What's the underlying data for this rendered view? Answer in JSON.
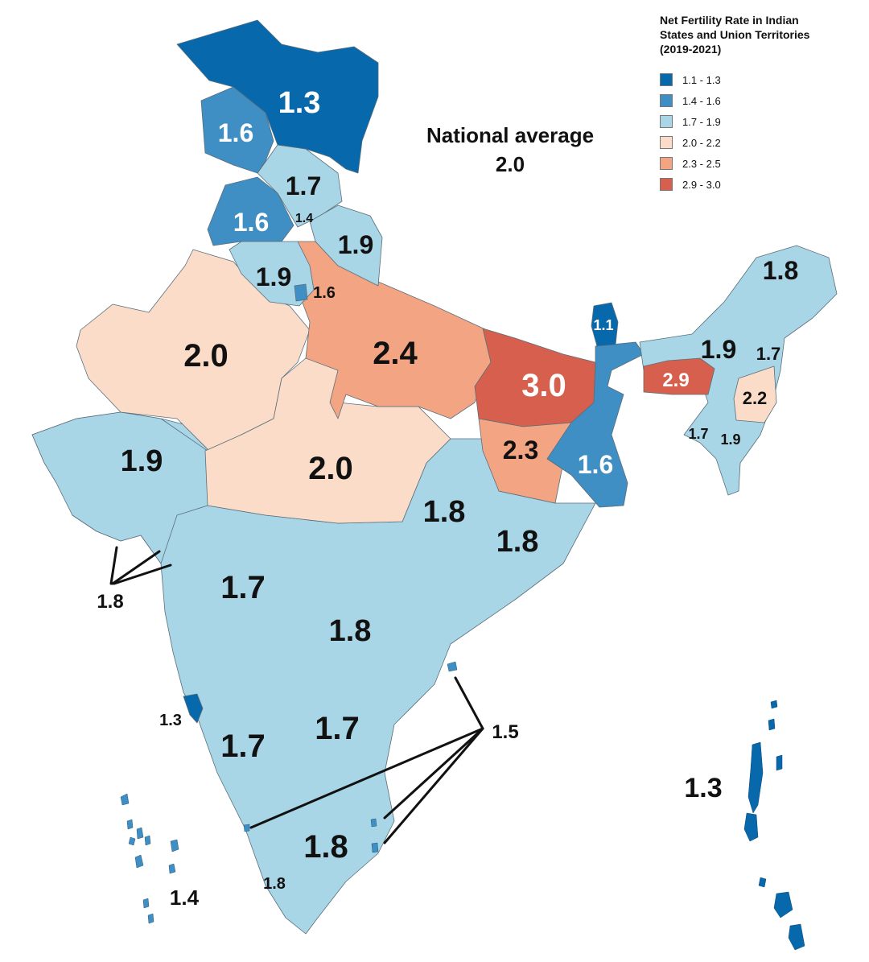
{
  "legend": {
    "title": "Net Fertility Rate in Indian States and Union Territories (2019-2021)",
    "items": [
      {
        "label": "1.1 - 1.3",
        "color": "#0868ac"
      },
      {
        "label": "1.4 - 1.6",
        "color": "#3f8ec4"
      },
      {
        "label": "1.7 - 1.9",
        "color": "#a8d6e6"
      },
      {
        "label": "2.0 - 2.2",
        "color": "#fbdcc8"
      },
      {
        "label": "2.3 - 2.5",
        "color": "#f3a482"
      },
      {
        "label": "2.9 - 3.0",
        "color": "#d6604d"
      }
    ]
  },
  "national_average": {
    "label": "National average",
    "value": "2.0"
  },
  "regions": [
    {
      "name": "jammu-kashmir",
      "value": "1.3"
    },
    {
      "name": "ladakh-west",
      "value": "1.6"
    },
    {
      "name": "himachal-pradesh",
      "value": "1.7"
    },
    {
      "name": "punjab",
      "value": "1.6"
    },
    {
      "name": "chandigarh",
      "value": "1.4"
    },
    {
      "name": "uttarakhand",
      "value": "1.9"
    },
    {
      "name": "haryana",
      "value": "1.9"
    },
    {
      "name": "delhi",
      "value": "1.6"
    },
    {
      "name": "rajasthan",
      "value": "2.0"
    },
    {
      "name": "uttar-pradesh",
      "value": "2.4"
    },
    {
      "name": "bihar",
      "value": "3.0"
    },
    {
      "name": "sikkim",
      "value": "1.1"
    },
    {
      "name": "arunachal-pradesh",
      "value": "1.8"
    },
    {
      "name": "assam",
      "value": "1.9"
    },
    {
      "name": "nagaland",
      "value": "1.7"
    },
    {
      "name": "meghalaya",
      "value": "2.9"
    },
    {
      "name": "manipur",
      "value": "2.2"
    },
    {
      "name": "tripura",
      "value": "1.7"
    },
    {
      "name": "mizoram",
      "value": "1.9"
    },
    {
      "name": "gujarat",
      "value": "1.9"
    },
    {
      "name": "madhya-pradesh",
      "value": "2.0"
    },
    {
      "name": "jharkhand",
      "value": "2.3"
    },
    {
      "name": "west-bengal",
      "value": "1.6"
    },
    {
      "name": "chhattisgarh",
      "value": "1.8"
    },
    {
      "name": "odisha",
      "value": "1.8"
    },
    {
      "name": "dadra-daman-diu",
      "value": "1.8"
    },
    {
      "name": "maharashtra",
      "value": "1.7"
    },
    {
      "name": "telangana",
      "value": "1.8"
    },
    {
      "name": "goa",
      "value": "1.3"
    },
    {
      "name": "karnataka",
      "value": "1.7"
    },
    {
      "name": "andhra-pradesh",
      "value": "1.7"
    },
    {
      "name": "puducherry",
      "value": "1.5"
    },
    {
      "name": "tamil-nadu",
      "value": "1.8"
    },
    {
      "name": "kerala",
      "value": "1.8"
    },
    {
      "name": "lakshadweep",
      "value": "1.4"
    },
    {
      "name": "andaman-nicobar",
      "value": "1.3"
    }
  ]
}
